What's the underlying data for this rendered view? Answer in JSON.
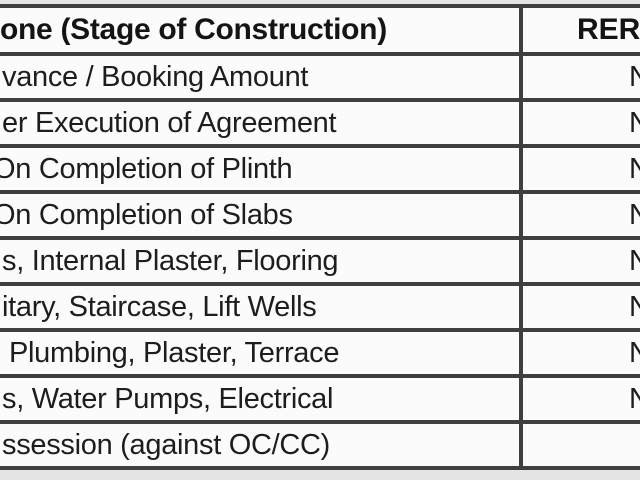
{
  "page": {
    "background_color": "#e4e4e4",
    "border_color": "#3f3f3f",
    "cell_background": "#fbfbfb",
    "text_color": "#1d1d1d"
  },
  "table": {
    "header": {
      "stage_label": "one (Stage of Construction)",
      "value_label": "RER"
    },
    "rows": [
      {
        "stage": "vance / Booking Amount",
        "value_fragment": "N"
      },
      {
        "stage": "er Execution of Agreement",
        "value_fragment": "N"
      },
      {
        "stage": "On Completion of Plinth",
        "value_fragment": "N"
      },
      {
        "stage": "On Completion of Slabs",
        "value_fragment": "N"
      },
      {
        "stage": "s, Internal Plaster, Flooring",
        "value_fragment": "N"
      },
      {
        "stage": "itary, Staircase, Lift Wells",
        "value_fragment": "N"
      },
      {
        "stage": "Plumbing, Plaster, Terrace",
        "value_fragment": "N"
      },
      {
        "stage": "s, Water Pumps, Electrical",
        "value_fragment": "N"
      },
      {
        "stage": "ssession (against OC/CC)",
        "value_fragment": ""
      }
    ]
  }
}
